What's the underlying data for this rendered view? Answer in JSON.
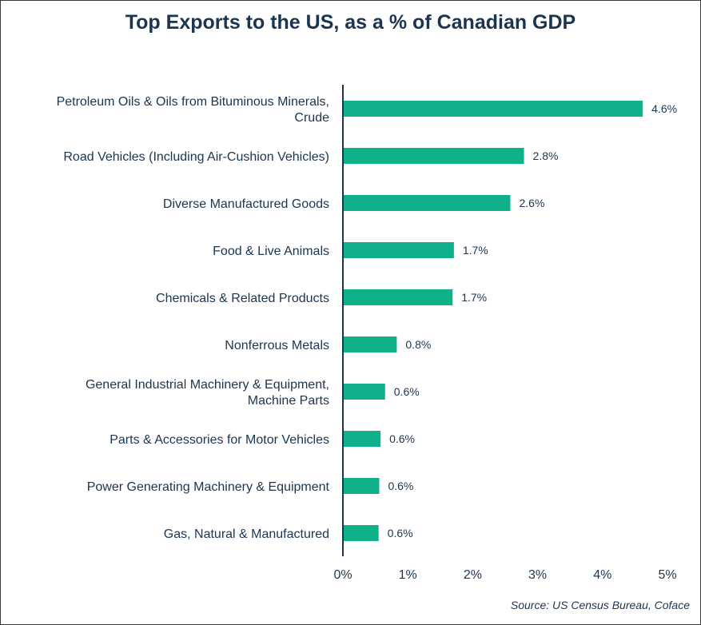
{
  "chart_data": {
    "type": "bar",
    "orientation": "horizontal",
    "title": "Top Exports to the US, as a % of Canadian GDP",
    "categories": [
      [
        "Petroleum Oils & Oils from Bituminous Minerals,",
        "Crude"
      ],
      [
        "Road Vehicles (Including Air-Cushion Vehicles)"
      ],
      [
        "Diverse Manufactured Goods"
      ],
      [
        "Food & Live Animals"
      ],
      [
        "Chemicals & Related Products"
      ],
      [
        "Nonferrous Metals"
      ],
      [
        "General Industrial Machinery & Equipment,",
        "Machine Parts"
      ],
      [
        "Parts & Accessories for Motor Vehicles"
      ],
      [
        "Power Generating Machinery & Equipment"
      ],
      [
        "Gas, Natural & Manufactured"
      ]
    ],
    "values": [
      4.62,
      2.79,
      2.58,
      1.71,
      1.69,
      0.83,
      0.65,
      0.58,
      0.56,
      0.55
    ],
    "value_labels": [
      "4.6%",
      "2.8%",
      "2.6%",
      "1.7%",
      "1.7%",
      "0.8%",
      "0.6%",
      "0.6%",
      "0.6%",
      "0.6%"
    ],
    "xlim": [
      0,
      5
    ],
    "xticks": [
      "0%",
      "1%",
      "2%",
      "3%",
      "4%",
      "5%"
    ],
    "grid": false,
    "bar_color": "#10b08a",
    "axis_color": "#1b3550",
    "text_color": "#1b3550",
    "source": "Source: US Census Bureau, Coface"
  }
}
